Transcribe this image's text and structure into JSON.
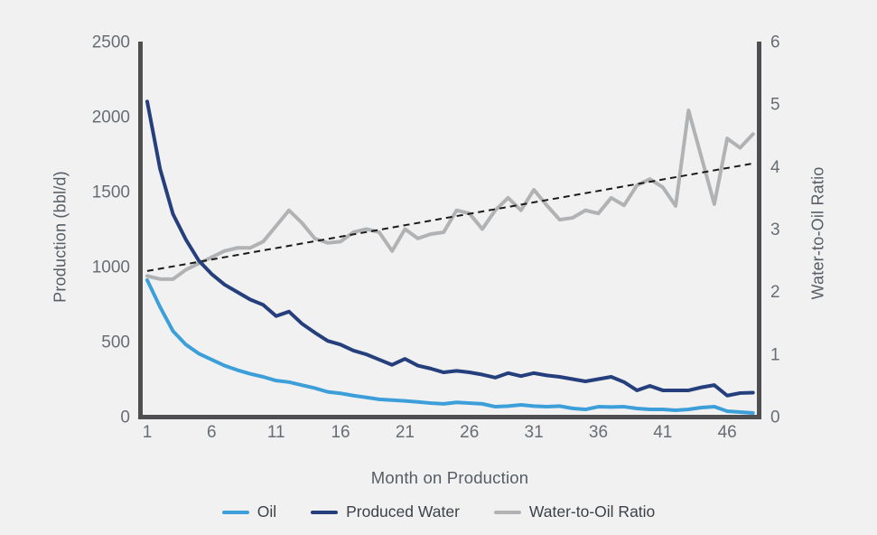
{
  "canvas": {
    "bg": "#f1f1f2"
  },
  "axes": {
    "left": {
      "title": "Production (bbl/d)",
      "ticks": [
        0,
        500,
        1000,
        1500,
        2000,
        2500
      ],
      "range": [
        0,
        2500
      ]
    },
    "right": {
      "title": "Water-to-Oil Ratio",
      "ticks": [
        0,
        1,
        2,
        3,
        4,
        5,
        6
      ],
      "range": [
        0,
        6
      ]
    },
    "x": {
      "title": "Month on Production",
      "ticks": [
        1,
        6,
        11,
        16,
        21,
        26,
        31,
        36,
        41,
        46
      ],
      "range": [
        1,
        48
      ]
    }
  },
  "legend": [
    {
      "label": "Oil",
      "color": "#3d9fd9"
    },
    {
      "label": "Produced Water",
      "color": "#253e7c"
    },
    {
      "label": "Water-to-Oil Ratio",
      "color": "#b1b2b4"
    }
  ],
  "colors": {
    "axis_line": "#4f4f52",
    "tick_text": "#686d73",
    "trend": "#1b1b1b"
  },
  "chart_data": {
    "type": "line",
    "title": "",
    "xlabel": "Month on Production",
    "ylabel_left": "Production (bbl/d)",
    "ylabel_right": "Water-to-Oil Ratio",
    "x": [
      1,
      2,
      3,
      4,
      5,
      6,
      7,
      8,
      9,
      10,
      11,
      12,
      13,
      14,
      15,
      16,
      17,
      18,
      19,
      20,
      21,
      22,
      23,
      24,
      25,
      26,
      27,
      28,
      29,
      30,
      31,
      32,
      33,
      34,
      35,
      36,
      37,
      38,
      39,
      40,
      41,
      42,
      43,
      44,
      45,
      46,
      47,
      48
    ],
    "series": [
      {
        "name": "Oil",
        "axis": "left",
        "color": "#3d9fd9",
        "values": [
          910,
          730,
          570,
          480,
          420,
          380,
          340,
          310,
          285,
          265,
          240,
          230,
          210,
          190,
          165,
          155,
          140,
          128,
          115,
          110,
          105,
          98,
          90,
          85,
          95,
          90,
          85,
          66,
          70,
          78,
          70,
          66,
          70,
          55,
          48,
          66,
          64,
          66,
          54,
          48,
          48,
          42,
          48,
          60,
          66,
          36,
          30,
          24
        ]
      },
      {
        "name": "Produced Water",
        "axis": "left",
        "color": "#253e7c",
        "values": [
          2100,
          1650,
          1350,
          1180,
          1040,
          950,
          880,
          830,
          780,
          745,
          670,
          700,
          620,
          560,
          505,
          480,
          440,
          415,
          380,
          345,
          385,
          340,
          320,
          295,
          305,
          295,
          280,
          260,
          290,
          270,
          290,
          275,
          265,
          250,
          235,
          250,
          265,
          230,
          175,
          205,
          175,
          175,
          175,
          195,
          210,
          140,
          157,
          160
        ]
      },
      {
        "name": "Water-to-Oil Ratio",
        "axis": "right",
        "color": "#b1b2b4",
        "values": [
          2.25,
          2.2,
          2.2,
          2.35,
          2.45,
          2.55,
          2.65,
          2.7,
          2.7,
          2.8,
          3.05,
          3.3,
          3.1,
          2.85,
          2.78,
          2.8,
          2.95,
          3.0,
          2.95,
          2.65,
          3.0,
          2.85,
          2.92,
          2.95,
          3.3,
          3.25,
          3.0,
          3.3,
          3.5,
          3.3,
          3.63,
          3.38,
          3.15,
          3.18,
          3.3,
          3.25,
          3.5,
          3.38,
          3.7,
          3.8,
          3.67,
          3.37,
          4.9,
          4.15,
          3.4,
          4.45,
          4.3,
          4.52
        ]
      }
    ],
    "trend_line": {
      "name": "WOR trend",
      "axis": "right",
      "style": "dashed",
      "start": {
        "x": 1,
        "y": 2.33
      },
      "end": {
        "x": 48,
        "y": 4.05
      }
    },
    "ylim_left": [
      0,
      2500
    ],
    "ylim_right": [
      0,
      6
    ],
    "grid": false,
    "legend_position": "bottom"
  }
}
